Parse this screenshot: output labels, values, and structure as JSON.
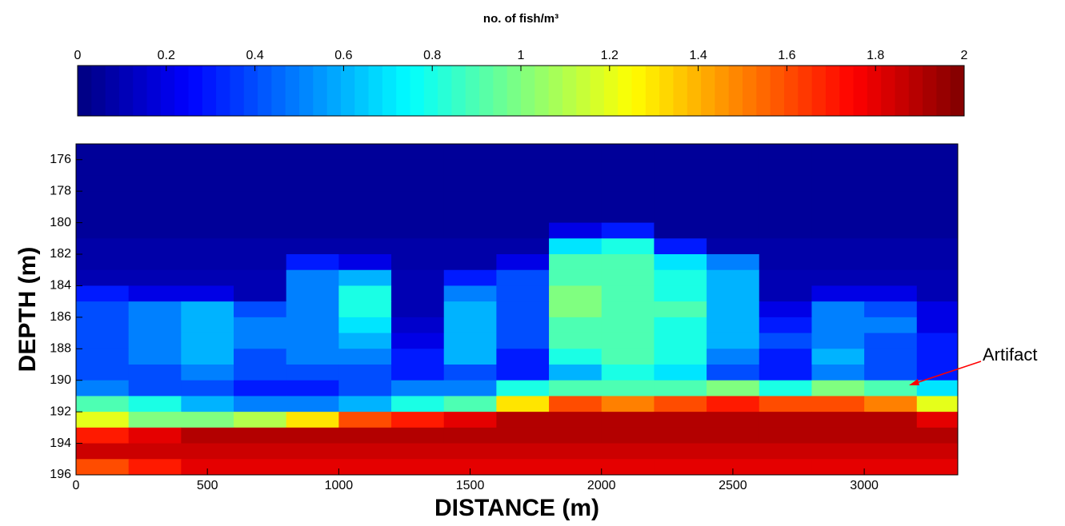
{
  "chart_data": {
    "type": "heatmap",
    "colorbar_label": "no. of fish/m³",
    "xlabel": "DISTANCE (m)",
    "ylabel": "DEPTH (m)",
    "colormap": "jet",
    "clim": [
      0,
      2
    ],
    "cticks": [
      0,
      0.2,
      0.4,
      0.6,
      0.8,
      1,
      1.2,
      1.4,
      1.6,
      1.8,
      2
    ],
    "xlim": [
      0,
      3356
    ],
    "ylim": [
      175,
      196
    ],
    "y_reversed": true,
    "xticks": [
      0,
      500,
      1000,
      1500,
      2000,
      2500,
      3000
    ],
    "yticks": [
      176,
      178,
      180,
      182,
      184,
      186,
      188,
      190,
      192,
      194,
      196
    ],
    "x_edges": [
      0,
      200,
      400,
      600,
      800,
      1000,
      1200,
      1400,
      1600,
      1800,
      2000,
      2200,
      2400,
      2600,
      2800,
      3000,
      3200,
      3356
    ],
    "y_edges": [
      175,
      176,
      177,
      178,
      179,
      180,
      181,
      182,
      183,
      184,
      185,
      186,
      187,
      188,
      189,
      190,
      191,
      192,
      193,
      194,
      195,
      196
    ],
    "z": [
      [
        0.05,
        0.05,
        0.05,
        0.05,
        0.05,
        0.05,
        0.05,
        0.05,
        0.05,
        0.05,
        0.05,
        0.05,
        0.05,
        0.05,
        0.05,
        0.05,
        0.05
      ],
      [
        0.05,
        0.05,
        0.05,
        0.05,
        0.05,
        0.05,
        0.05,
        0.05,
        0.05,
        0.05,
        0.05,
        0.05,
        0.05,
        0.05,
        0.05,
        0.05,
        0.05
      ],
      [
        0.05,
        0.05,
        0.05,
        0.05,
        0.05,
        0.05,
        0.05,
        0.05,
        0.05,
        0.05,
        0.05,
        0.05,
        0.05,
        0.05,
        0.05,
        0.05,
        0.05
      ],
      [
        0.05,
        0.05,
        0.05,
        0.05,
        0.05,
        0.05,
        0.05,
        0.05,
        0.05,
        0.05,
        0.05,
        0.05,
        0.05,
        0.05,
        0.05,
        0.05,
        0.05
      ],
      [
        0.05,
        0.05,
        0.05,
        0.05,
        0.05,
        0.05,
        0.05,
        0.05,
        0.05,
        0.05,
        0.05,
        0.05,
        0.05,
        0.05,
        0.05,
        0.05,
        0.05
      ],
      [
        0.05,
        0.05,
        0.05,
        0.05,
        0.05,
        0.05,
        0.05,
        0.05,
        0.05,
        0.2,
        0.3,
        0.05,
        0.05,
        0.05,
        0.05,
        0.05,
        0.05
      ],
      [
        0.08,
        0.08,
        0.08,
        0.08,
        0.08,
        0.08,
        0.08,
        0.08,
        0.08,
        0.7,
        0.8,
        0.3,
        0.08,
        0.08,
        0.08,
        0.08,
        0.08
      ],
      [
        0.08,
        0.08,
        0.08,
        0.08,
        0.3,
        0.2,
        0.08,
        0.08,
        0.2,
        0.9,
        0.9,
        0.7,
        0.5,
        0.08,
        0.08,
        0.08,
        0.08
      ],
      [
        0.1,
        0.1,
        0.1,
        0.1,
        0.5,
        0.6,
        0.1,
        0.3,
        0.4,
        0.9,
        0.9,
        0.8,
        0.6,
        0.1,
        0.1,
        0.1,
        0.1
      ],
      [
        0.3,
        0.2,
        0.2,
        0.1,
        0.5,
        0.8,
        0.1,
        0.5,
        0.4,
        1.0,
        0.9,
        0.8,
        0.6,
        0.1,
        0.2,
        0.2,
        0.1
      ],
      [
        0.4,
        0.5,
        0.6,
        0.4,
        0.5,
        0.8,
        0.1,
        0.6,
        0.4,
        1.0,
        0.9,
        0.9,
        0.6,
        0.2,
        0.5,
        0.4,
        0.2
      ],
      [
        0.4,
        0.5,
        0.6,
        0.5,
        0.5,
        0.7,
        0.15,
        0.6,
        0.4,
        0.9,
        0.9,
        0.8,
        0.6,
        0.3,
        0.5,
        0.5,
        0.2
      ],
      [
        0.4,
        0.5,
        0.6,
        0.5,
        0.5,
        0.6,
        0.2,
        0.6,
        0.4,
        0.9,
        0.9,
        0.8,
        0.6,
        0.4,
        0.5,
        0.4,
        0.3
      ],
      [
        0.4,
        0.5,
        0.6,
        0.4,
        0.5,
        0.5,
        0.3,
        0.6,
        0.3,
        0.8,
        0.9,
        0.8,
        0.5,
        0.3,
        0.6,
        0.4,
        0.3
      ],
      [
        0.4,
        0.4,
        0.5,
        0.4,
        0.4,
        0.4,
        0.3,
        0.4,
        0.3,
        0.6,
        0.8,
        0.7,
        0.4,
        0.3,
        0.5,
        0.4,
        0.3
      ],
      [
        0.5,
        0.4,
        0.4,
        0.3,
        0.3,
        0.4,
        0.5,
        0.5,
        0.8,
        0.9,
        0.9,
        0.9,
        1.0,
        0.8,
        1.0,
        0.9,
        0.7
      ],
      [
        0.9,
        0.8,
        0.6,
        0.5,
        0.5,
        0.6,
        0.8,
        0.9,
        1.3,
        1.6,
        1.5,
        1.6,
        1.7,
        1.6,
        1.6,
        1.5,
        1.2
      ],
      [
        1.2,
        1.0,
        1.0,
        1.1,
        1.3,
        1.6,
        1.7,
        1.8,
        1.9,
        1.9,
        1.9,
        1.9,
        1.9,
        1.9,
        1.9,
        1.9,
        1.8
      ],
      [
        1.7,
        1.8,
        1.9,
        1.9,
        1.9,
        1.9,
        1.9,
        1.9,
        1.9,
        1.9,
        1.9,
        1.9,
        1.9,
        1.9,
        1.9,
        1.9,
        1.9
      ],
      [
        1.85,
        1.85,
        1.85,
        1.85,
        1.85,
        1.85,
        1.85,
        1.85,
        1.85,
        1.85,
        1.85,
        1.85,
        1.85,
        1.85,
        1.85,
        1.85,
        1.85
      ],
      [
        1.6,
        1.7,
        1.8,
        1.8,
        1.8,
        1.8,
        1.8,
        1.8,
        1.8,
        1.8,
        1.8,
        1.8,
        1.8,
        1.8,
        1.8,
        1.8,
        1.8
      ]
    ],
    "annotation": "Artifact",
    "annotation_color": "#ff0000"
  }
}
